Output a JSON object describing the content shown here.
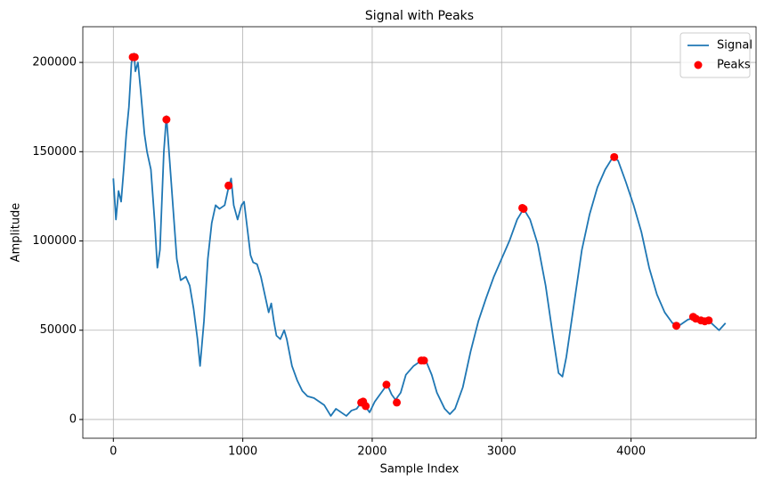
{
  "chart_data": {
    "type": "line",
    "title": "Signal with Peaks",
    "xlabel": "Sample Index",
    "ylabel": "Amplitude",
    "xlim": [
      -236,
      4966
    ],
    "ylim": [
      -10500,
      220000
    ],
    "xticks": [
      0,
      1000,
      2000,
      3000,
      4000
    ],
    "yticks": [
      0,
      50000,
      100000,
      150000,
      200000
    ],
    "grid": true,
    "legend": "upper right",
    "series": [
      {
        "name": "Signal",
        "color": "#1f77b4",
        "x": [
          0,
          20,
          40,
          60,
          80,
          100,
          120,
          140,
          160,
          170,
          190,
          210,
          240,
          260,
          290,
          320,
          340,
          360,
          390,
          410,
          430,
          460,
          490,
          520,
          560,
          590,
          620,
          650,
          670,
          700,
          730,
          760,
          790,
          820,
          860,
          890,
          910,
          930,
          960,
          990,
          1010,
          1030,
          1060,
          1080,
          1110,
          1140,
          1170,
          1200,
          1220,
          1240,
          1260,
          1290,
          1320,
          1340,
          1380,
          1420,
          1460,
          1500,
          1550,
          1590,
          1630,
          1680,
          1720,
          1760,
          1800,
          1840,
          1880,
          1920,
          1950,
          1980,
          2020,
          2060,
          2100,
          2120,
          2150,
          2180,
          2220,
          2260,
          2320,
          2380,
          2420,
          2460,
          2500,
          2560,
          2600,
          2640,
          2700,
          2760,
          2820,
          2880,
          2940,
          3000,
          3060,
          3120,
          3170,
          3220,
          3280,
          3340,
          3400,
          3440,
          3470,
          3500,
          3560,
          3620,
          3680,
          3740,
          3800,
          3860,
          3900,
          3960,
          4020,
          4080,
          4140,
          4200,
          4260,
          4320,
          4380,
          4440,
          4500,
          4560,
          4620,
          4680,
          4730
        ],
        "values": [
          135000,
          112000,
          128000,
          122000,
          140000,
          160000,
          175000,
          200000,
          205000,
          195000,
          200000,
          185000,
          160000,
          150000,
          140000,
          110000,
          85000,
          95000,
          150000,
          170000,
          150000,
          120000,
          90000,
          78000,
          80000,
          75000,
          62000,
          45000,
          30000,
          55000,
          90000,
          110000,
          120000,
          118000,
          120000,
          130000,
          135000,
          120000,
          112000,
          120000,
          122000,
          110000,
          92000,
          88000,
          87000,
          80000,
          70000,
          60000,
          65000,
          55000,
          47000,
          45000,
          50000,
          45000,
          30000,
          22000,
          16000,
          13000,
          12000,
          10000,
          8000,
          2000,
          6000,
          4000,
          2000,
          5000,
          6000,
          10000,
          7000,
          4000,
          10000,
          14000,
          18000,
          19000,
          14000,
          11000,
          15000,
          25000,
          30000,
          33000,
          32000,
          25000,
          15000,
          6000,
          3000,
          6000,
          18000,
          38000,
          55000,
          68000,
          80000,
          90000,
          100000,
          112000,
          118000,
          112000,
          98000,
          75000,
          45000,
          26000,
          24000,
          35000,
          65000,
          95000,
          115000,
          130000,
          140000,
          147000,
          145000,
          133000,
          120000,
          105000,
          85000,
          70000,
          60000,
          54000,
          53000,
          56000,
          57000,
          56000,
          54000,
          50000,
          54000
        ]
      },
      {
        "name": "Peaks",
        "type": "scatter",
        "color": "#ff0000",
        "x": [
          150,
          165,
          410,
          890,
          1915,
          1930,
          1950,
          2110,
          2190,
          2380,
          2400,
          3160,
          3170,
          3870,
          4350,
          4480,
          4500,
          4540,
          4570,
          4600
        ],
        "values": [
          203000,
          203000,
          168000,
          131000,
          9500,
          10000,
          7500,
          19500,
          9500,
          33000,
          33000,
          118500,
          118000,
          147000,
          52500,
          57500,
          56500,
          55500,
          55000,
          55500
        ]
      }
    ]
  }
}
